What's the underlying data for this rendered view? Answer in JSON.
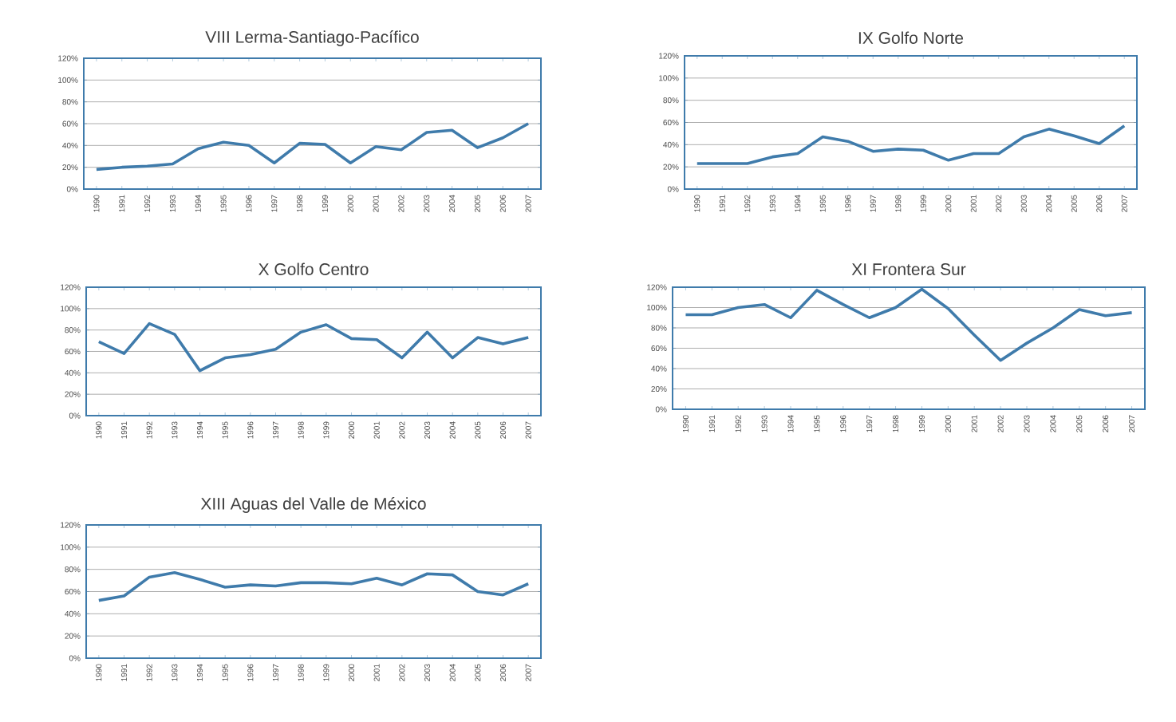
{
  "chart_data": [
    {
      "type": "line",
      "title": "VIII Lerma-Santiago-Pacífico",
      "categories": [
        "1990",
        "1991",
        "1992",
        "1993",
        "1994",
        "1995",
        "1996",
        "1997",
        "1998",
        "1999",
        "2000",
        "2001",
        "2002",
        "2003",
        "2004",
        "2005",
        "2006",
        "2007"
      ],
      "series": [
        {
          "color": "#3f7bab",
          "values": [
            18,
            20,
            21,
            23,
            37,
            43,
            40,
            24,
            42,
            41,
            24,
            39,
            36,
            52,
            54,
            38,
            47,
            60
          ]
        }
      ],
      "ylim": [
        0,
        120
      ],
      "yticks": [
        {
          "value": 0,
          "label": "0%"
        },
        {
          "value": 20,
          "label": "20%"
        },
        {
          "value": 40,
          "label": "40%"
        },
        {
          "value": 60,
          "label": "60%"
        },
        {
          "value": 80,
          "label": "80%"
        },
        {
          "value": 100,
          "label": "100%"
        },
        {
          "value": 120,
          "label": "120%"
        }
      ],
      "grid": "y"
    },
    {
      "type": "line",
      "title": "IX Golfo Norte",
      "categories": [
        "1990",
        "1991",
        "1992",
        "1993",
        "1994",
        "1995",
        "1996",
        "1997",
        "1998",
        "1999",
        "2000",
        "2001",
        "2002",
        "2003",
        "2004",
        "2005",
        "2006",
        "2007"
      ],
      "series": [
        {
          "color": "#3f7bab",
          "values": [
            23,
            23,
            23,
            29,
            32,
            47,
            43,
            34,
            36,
            35,
            26,
            32,
            32,
            47,
            54,
            48,
            41,
            57
          ]
        }
      ],
      "ylim": [
        0,
        120
      ],
      "yticks": [
        {
          "value": 0,
          "label": "0%"
        },
        {
          "value": 20,
          "label": "20%"
        },
        {
          "value": 40,
          "label": "40%"
        },
        {
          "value": 60,
          "label": "60%"
        },
        {
          "value": 80,
          "label": "80%"
        },
        {
          "value": 100,
          "label": "100%"
        },
        {
          "value": 120,
          "label": "120%"
        }
      ],
      "grid": "y"
    },
    {
      "type": "line",
      "title": "X Golfo Centro",
      "categories": [
        "1990",
        "1991",
        "1992",
        "1993",
        "1994",
        "1995",
        "1996",
        "1997",
        "1998",
        "1999",
        "2000",
        "2001",
        "2002",
        "2003",
        "2004",
        "2005",
        "2006",
        "2007"
      ],
      "series": [
        {
          "color": "#3f7bab",
          "values": [
            69,
            58,
            86,
            76,
            42,
            54,
            57,
            62,
            78,
            85,
            72,
            71,
            54,
            78,
            54,
            73,
            67,
            73
          ]
        }
      ],
      "ylim": [
        0,
        120
      ],
      "yticks": [
        {
          "value": 0,
          "label": "0%"
        },
        {
          "value": 20,
          "label": "20%"
        },
        {
          "value": 40,
          "label": "40%"
        },
        {
          "value": 60,
          "label": "60%"
        },
        {
          "value": 80,
          "label": "80%"
        },
        {
          "value": 100,
          "label": "100%"
        },
        {
          "value": 120,
          "label": "120%"
        }
      ],
      "grid": "y"
    },
    {
      "type": "line",
      "title": "XI Frontera Sur",
      "categories": [
        "1990",
        "1991",
        "1992",
        "1993",
        "1994",
        "1995",
        "1996",
        "1997",
        "1998",
        "1999",
        "2000",
        "2001",
        "2002",
        "2003",
        "2004",
        "2005",
        "2006",
        "2007"
      ],
      "series": [
        {
          "color": "#3f7bab",
          "values": [
            93,
            93,
            100,
            103,
            90,
            117,
            103,
            90,
            100,
            118,
            99,
            73,
            48,
            65,
            80,
            98,
            92,
            95
          ]
        }
      ],
      "ylim": [
        0,
        120
      ],
      "yticks": [
        {
          "value": 0,
          "label": "0%"
        },
        {
          "value": 20,
          "label": "20%"
        },
        {
          "value": 40,
          "label": "40%"
        },
        {
          "value": 60,
          "label": "60%"
        },
        {
          "value": 80,
          "label": "80%"
        },
        {
          "value": 100,
          "label": "100%"
        },
        {
          "value": 120,
          "label": "120%"
        }
      ],
      "grid": "y"
    },
    {
      "type": "line",
      "title": "XIII Aguas del Valle de México",
      "categories": [
        "1990",
        "1991",
        "1992",
        "1993",
        "1994",
        "1995",
        "1996",
        "1997",
        "1998",
        "1999",
        "2000",
        "2001",
        "2002",
        "2003",
        "2004",
        "2005",
        "2006",
        "2007"
      ],
      "series": [
        {
          "color": "#3f7bab",
          "values": [
            52,
            56,
            73,
            77,
            71,
            64,
            66,
            65,
            68,
            68,
            67,
            72,
            66,
            76,
            75,
            60,
            57,
            67
          ]
        }
      ],
      "ylim": [
        0,
        120
      ],
      "yticks": [
        {
          "value": 0,
          "label": "0%"
        },
        {
          "value": 20,
          "label": "20%"
        },
        {
          "value": 40,
          "label": "40%"
        },
        {
          "value": 60,
          "label": "60%"
        },
        {
          "value": 80,
          "label": "80%"
        },
        {
          "value": 100,
          "label": "100%"
        },
        {
          "value": 120,
          "label": "120%"
        }
      ],
      "grid": "y"
    }
  ]
}
